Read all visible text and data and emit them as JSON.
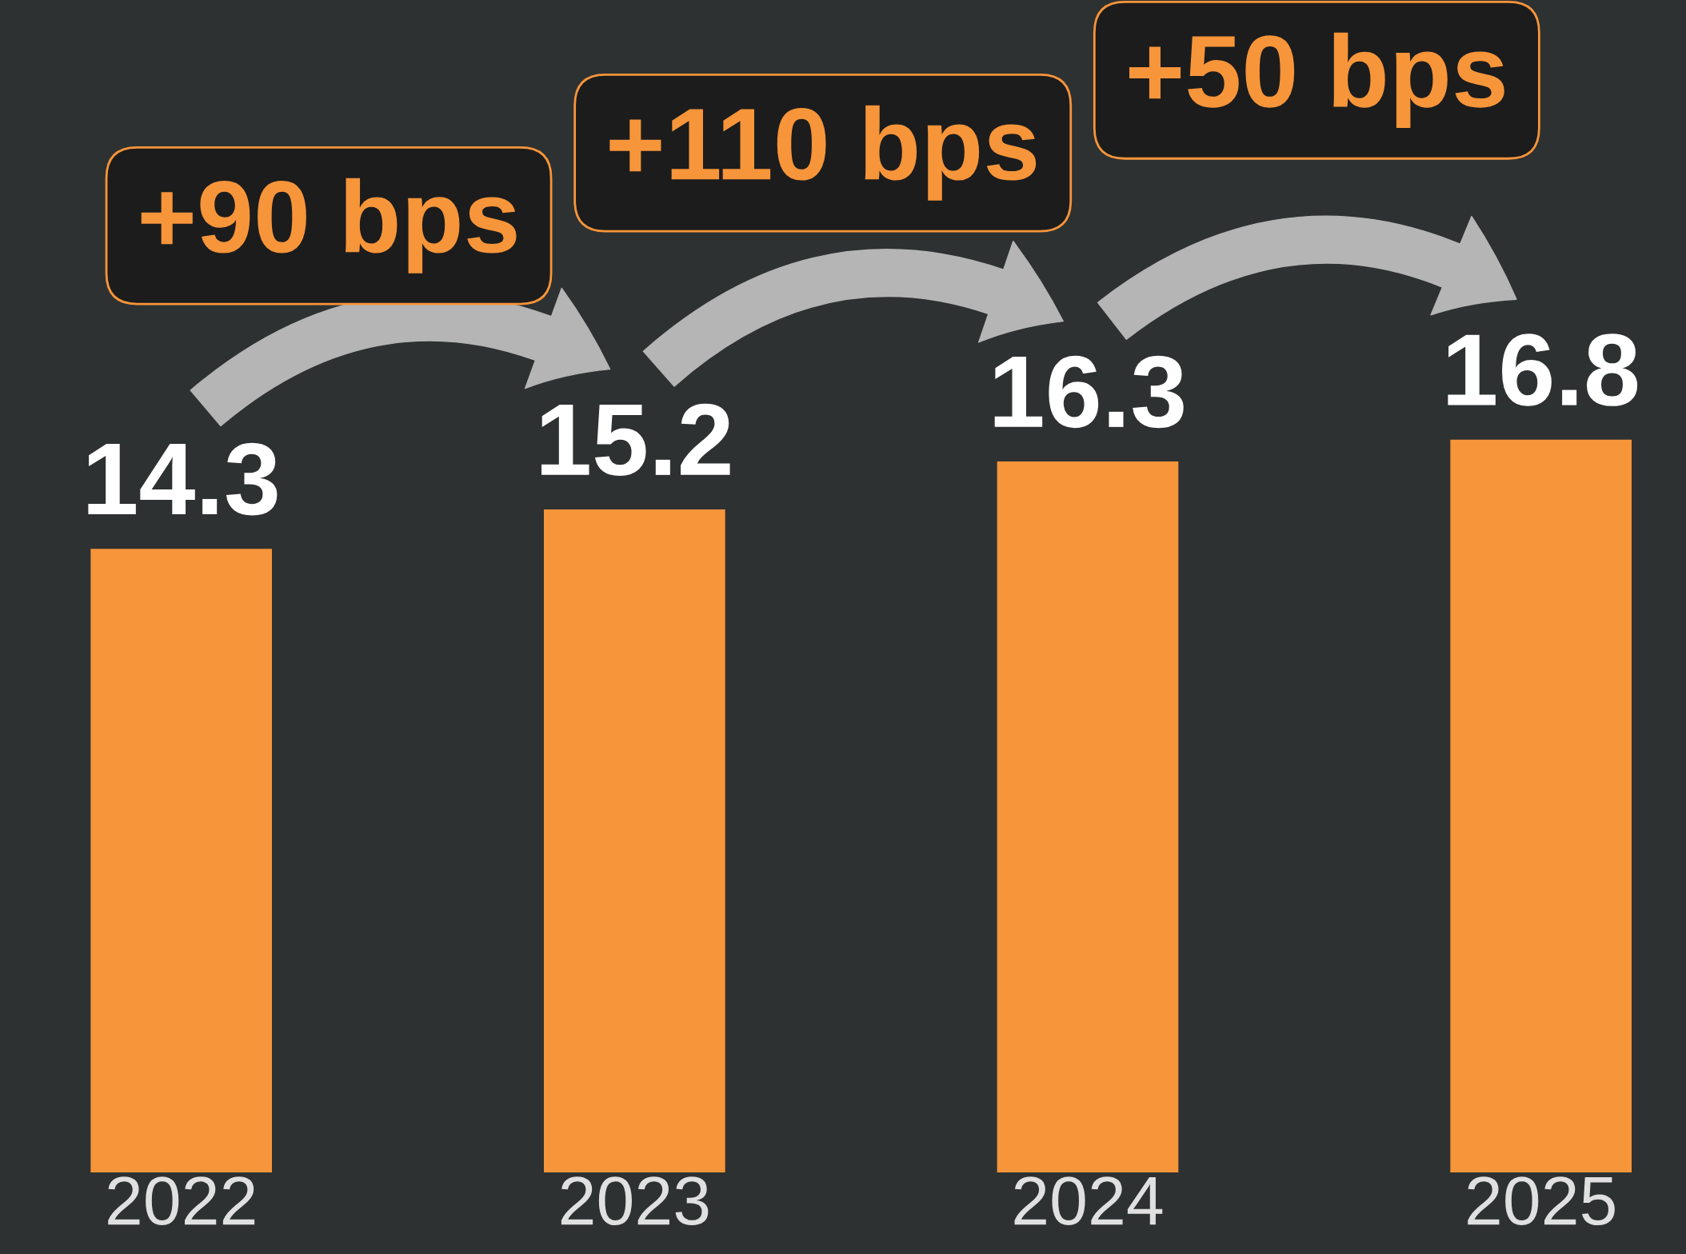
{
  "chart_data": {
    "type": "bar",
    "categories": [
      "2022",
      "2023",
      "2024",
      "2025"
    ],
    "values": [
      14.3,
      15.2,
      16.3,
      16.8
    ],
    "color": "#f7953a",
    "data_labels": true,
    "tick_labels": "x",
    "annotations": [
      "+90 bps",
      "+110 bps",
      "+50 bps"
    ]
  }
}
